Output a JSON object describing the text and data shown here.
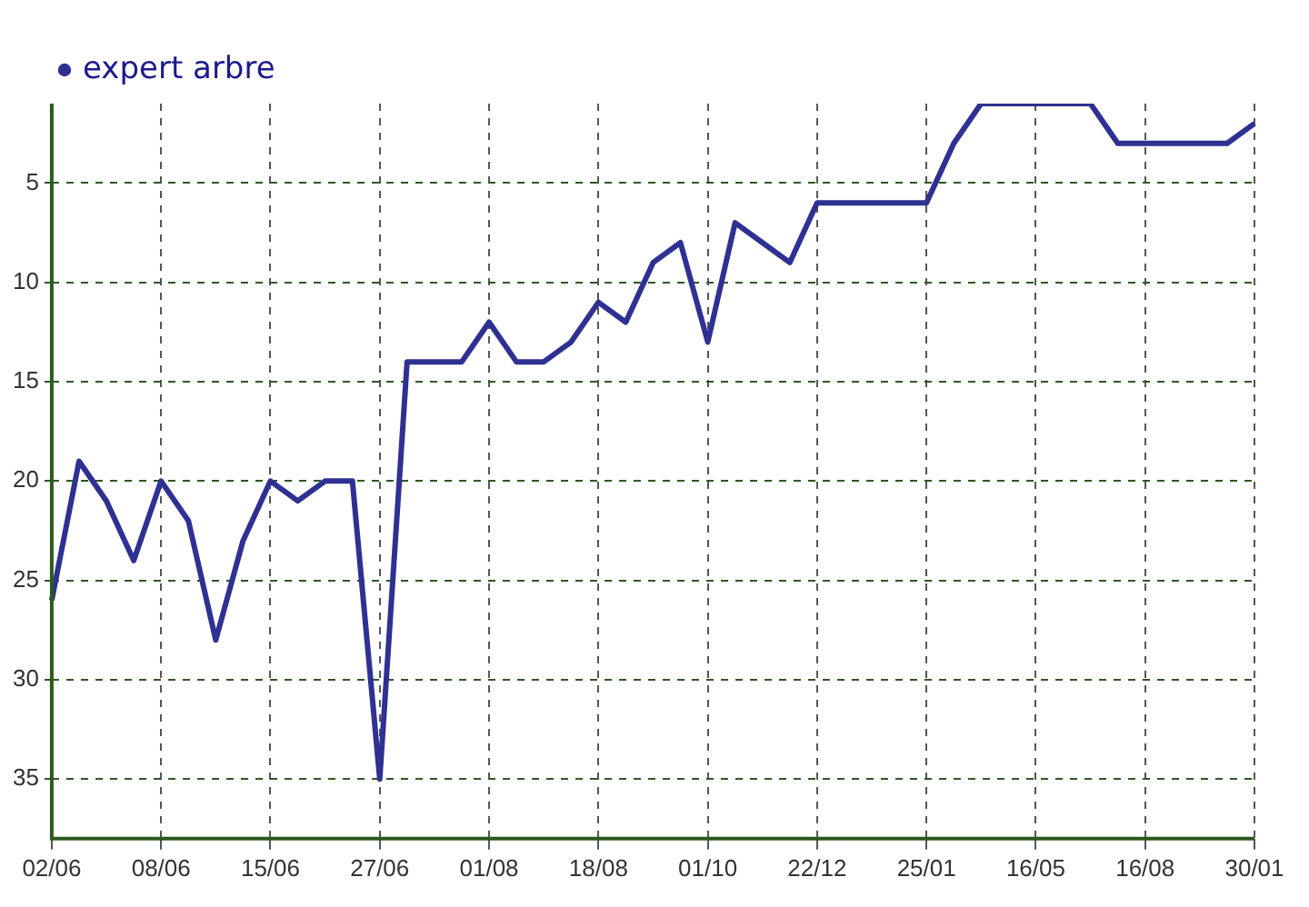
{
  "chart_data": {
    "type": "line",
    "categories": [
      "02/06",
      null,
      null,
      null,
      "08/06",
      null,
      null,
      null,
      "15/06",
      null,
      null,
      null,
      "27/06",
      null,
      null,
      null,
      "01/08",
      null,
      null,
      null,
      "18/08",
      null,
      null,
      null,
      "01/10",
      null,
      null,
      null,
      "22/12",
      null,
      null,
      null,
      "25/01",
      null,
      null,
      null,
      "16/05",
      null,
      null,
      null,
      "16/08",
      null,
      null,
      null,
      "30/01"
    ],
    "series": [
      {
        "name": "expert arbre",
        "color": "#2e3192",
        "values": [
          26,
          19,
          21,
          24,
          20,
          22,
          28,
          23,
          20,
          21,
          20,
          20,
          35,
          14,
          14,
          14,
          12,
          14,
          14,
          13,
          11,
          12,
          9,
          8,
          13,
          7,
          8,
          9,
          6,
          6,
          6,
          6,
          6,
          3,
          1,
          1,
          1,
          1,
          1,
          3,
          3,
          3,
          3,
          3,
          2
        ]
      }
    ],
    "ylim": [
      38,
      1
    ],
    "yticks": [
      5,
      10,
      15,
      20,
      25,
      30,
      35
    ],
    "grid": true,
    "legend": "top left",
    "marker": "none",
    "line_style": "solid"
  }
}
